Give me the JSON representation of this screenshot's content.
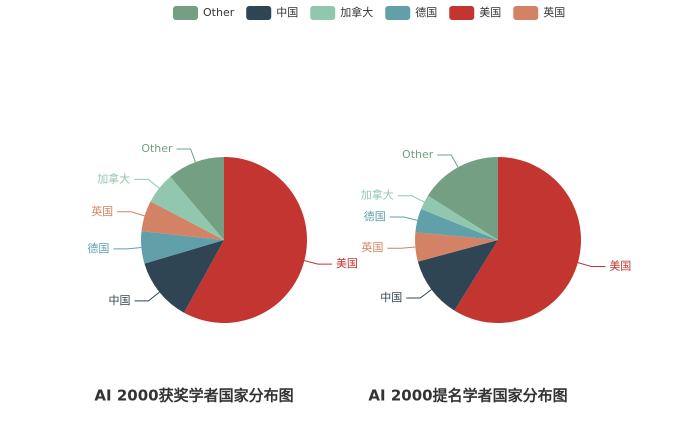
{
  "legend": [
    "Other",
    "中国",
    "加拿大",
    "德国",
    "美国",
    "英国"
  ],
  "chart_data": [
    {
      "type": "pie",
      "title": "AI 2000获奖学者国家分布图",
      "categories": [
        "美国",
        "中国",
        "德国",
        "英国",
        "加拿大",
        "Other"
      ],
      "values": [
        58,
        12.4,
        6.3,
        6,
        6.1,
        11.2
      ],
      "colors": [
        "#c23531",
        "#2f4554",
        "#61a0a8",
        "#d48265",
        "#91c7ae",
        "#749f83"
      ]
    },
    {
      "type": "pie",
      "title": "AI 2000提名学者国家分布图",
      "categories": [
        "美国",
        "中国",
        "英国",
        "德国",
        "加拿大",
        "Other"
      ],
      "values": [
        58.8,
        12,
        5.7,
        4.6,
        2.9,
        16
      ],
      "colors": [
        "#c23531",
        "#2f4554",
        "#d48265",
        "#61a0a8",
        "#91c7ae",
        "#749f83"
      ]
    }
  ]
}
